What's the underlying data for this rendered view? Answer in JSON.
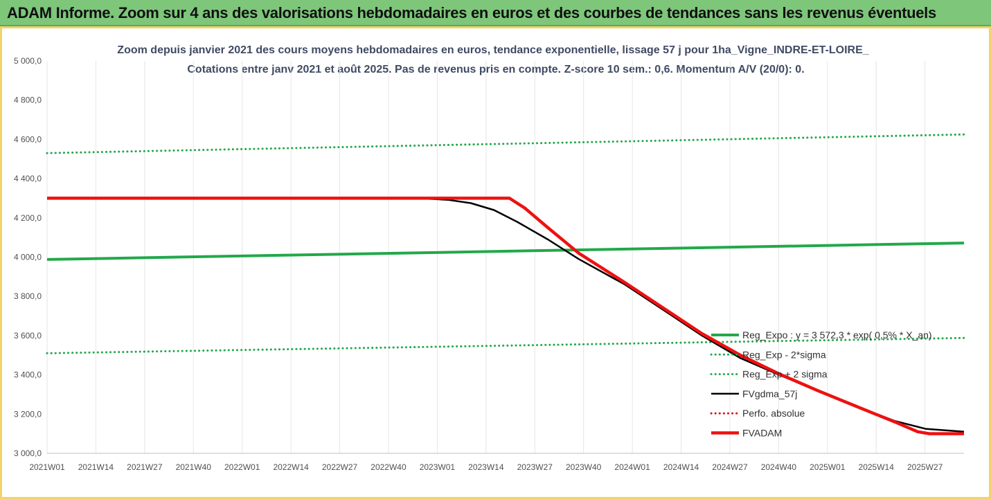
{
  "banner": {
    "title": "ADAM Informe. Zoom sur 4 ans des valorisations hebdomadaires en euros et des courbes de tendances sans les revenus éventuels"
  },
  "chart_data": {
    "type": "line",
    "title_line1": "Zoom depuis janvier 2021 des cours moyens hebdomadaires en euros, tendance exponentielle, lissage 57 j pour 1ha_Vigne_INDRE-ET-LOIRE_",
    "title_line2": "Cotations entre janv 2021 et août 2025.  Pas de revenus pris en compte. Z-score 10 sem.: 0,6. Momentum A/V (20/0): 0.",
    "xlabel": "",
    "ylabel": "",
    "ylim": [
      3000,
      5000
    ],
    "y_ticks": [
      "5 000,0",
      "4 800,0",
      "4 600,0",
      "4 400,0",
      "4 200,0",
      "4 000,0",
      "3 800,0",
      "3 600,0",
      "3 400,0",
      "3 200,0",
      "3 000,0"
    ],
    "y_tick_values": [
      5000,
      4800,
      4600,
      4400,
      4200,
      4000,
      3800,
      3600,
      3400,
      3200,
      3000
    ],
    "x_tick_labels": [
      "2021W01",
      "2021W14",
      "2021W27",
      "2021W40",
      "2022W01",
      "2022W14",
      "2022W27",
      "2022W40",
      "2023W01",
      "2023W14",
      "2023W27",
      "2023W40",
      "2024W01",
      "2024W14",
      "2024W27",
      "2024W40",
      "2025W01",
      "2025W14",
      "2025W27"
    ],
    "x_range_weeks": [
      0,
      238
    ],
    "grid": "vertical",
    "legend_position": "right",
    "series": [
      {
        "name": "Reg_Expo : y = 3 572,3 * exp( 0,5% * X_an)",
        "color": "#22a84a",
        "style": "solid",
        "width": 4,
        "x": [
          0,
          238
        ],
        "y": [
          3988,
          4072
        ]
      },
      {
        "name": "Reg_Exp - 2*sigma",
        "color": "#22a84a",
        "style": "dotted",
        "width": 3,
        "x": [
          0,
          238
        ],
        "y": [
          3510,
          3588
        ]
      },
      {
        "name": "Reg_Exp + 2 sigma",
        "color": "#22a84a",
        "style": "dotted",
        "width": 3,
        "x": [
          0,
          238
        ],
        "y": [
          4530,
          4625
        ]
      },
      {
        "name": "FVgdma_57j",
        "color": "#000000",
        "style": "solid",
        "width": 2.5,
        "x": [
          0,
          96,
          104,
          110,
          116,
          122,
          130,
          138,
          150,
          160,
          170,
          180,
          190,
          200,
          210,
          220,
          228,
          238
        ],
        "y": [
          4300,
          4300,
          4292,
          4275,
          4240,
          4180,
          4090,
          3990,
          3860,
          3730,
          3600,
          3485,
          3400,
          3320,
          3240,
          3165,
          3125,
          3110
        ]
      },
      {
        "name": "Perfo. absolue",
        "color": "#e01010",
        "style": "dotted",
        "width": 2,
        "x": [],
        "y": []
      },
      {
        "name": "FVADAM",
        "color": "#ee1111",
        "style": "solid",
        "width": 4.5,
        "x": [
          0,
          120,
          124,
          130,
          138,
          150,
          160,
          170,
          180,
          190,
          200,
          210,
          220,
          226,
          229,
          238
        ],
        "y": [
          4300,
          4300,
          4250,
          4150,
          4020,
          3870,
          3740,
          3610,
          3500,
          3405,
          3320,
          3240,
          3160,
          3110,
          3100,
          3100
        ]
      }
    ]
  }
}
